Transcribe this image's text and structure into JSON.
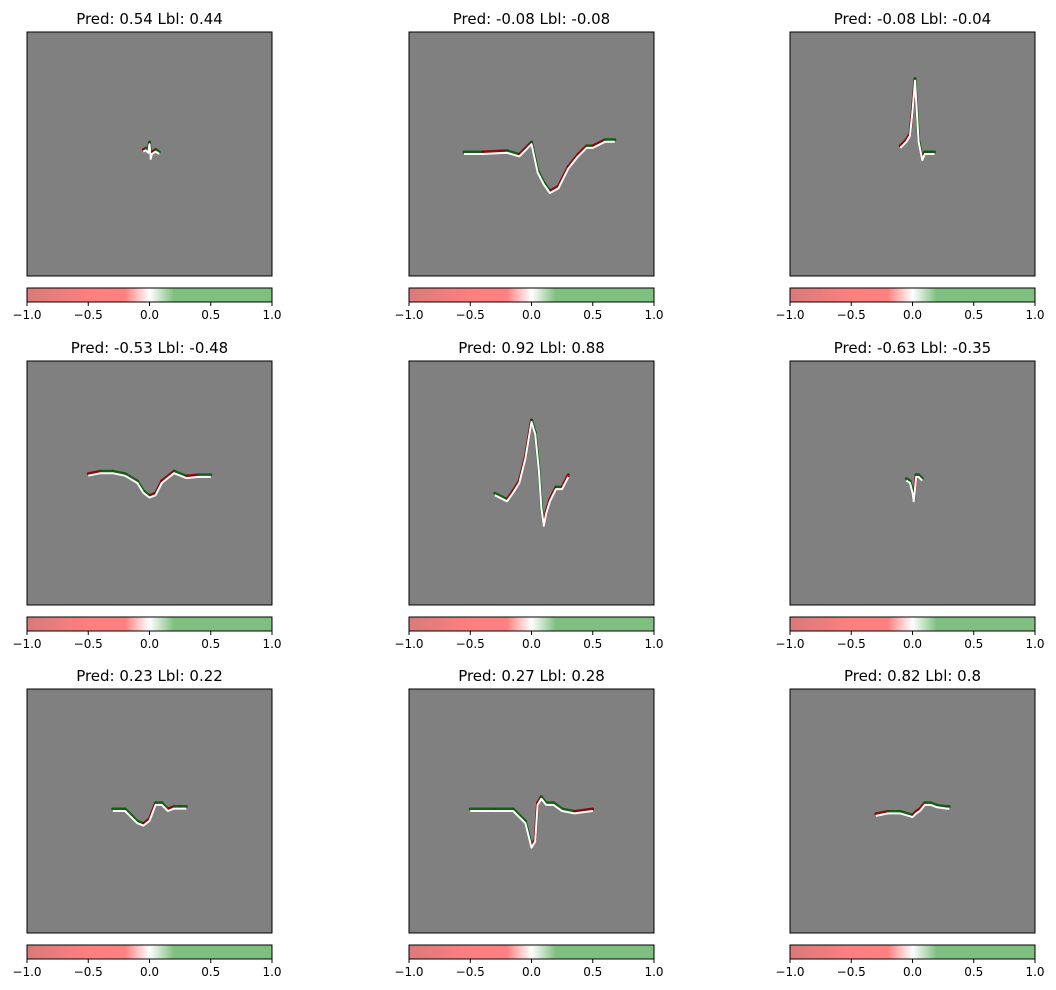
{
  "chart_data": [
    {
      "type": "line",
      "title": "Pred: 0.54 Lbl: 0.44",
      "colorbar": {
        "ticks": [
          "−1.0",
          "−0.5",
          "0.0",
          "0.5",
          "1.0"
        ],
        "range": [
          -1,
          1
        ]
      },
      "signal": [
        [
          -0.05,
          0.02
        ],
        [
          -0.03,
          0.03
        ],
        [
          -0.01,
          0.01
        ],
        [
          0.0,
          0.08
        ],
        [
          0.01,
          -0.04
        ],
        [
          0.02,
          0.0
        ],
        [
          0.05,
          0.02
        ],
        [
          0.08,
          0.0
        ]
      ]
    },
    {
      "type": "line",
      "title": "Pred: -0.08 Lbl: -0.08",
      "colorbar": {
        "ticks": [
          "−1.0",
          "−0.5",
          "0.0",
          "0.5",
          "1.0"
        ],
        "range": [
          -1,
          1
        ]
      },
      "signal": [
        [
          -0.55,
          0.0
        ],
        [
          -0.4,
          0.0
        ],
        [
          -0.2,
          0.01
        ],
        [
          -0.1,
          -0.02
        ],
        [
          0.0,
          0.08
        ],
        [
          0.05,
          -0.15
        ],
        [
          0.1,
          -0.25
        ],
        [
          0.15,
          -0.32
        ],
        [
          0.22,
          -0.28
        ],
        [
          0.3,
          -0.12
        ],
        [
          0.38,
          -0.02
        ],
        [
          0.45,
          0.05
        ],
        [
          0.5,
          0.05
        ],
        [
          0.6,
          0.1
        ],
        [
          0.68,
          0.1
        ]
      ]
    },
    {
      "type": "line",
      "title": "Pred: -0.08 Lbl: -0.04",
      "colorbar": {
        "ticks": [
          "−1.0",
          "−0.5",
          "0.0",
          "0.5",
          "1.0"
        ],
        "range": [
          -1,
          1
        ]
      },
      "signal": [
        [
          -0.1,
          0.05
        ],
        [
          -0.05,
          0.1
        ],
        [
          -0.02,
          0.15
        ],
        [
          0.0,
          0.35
        ],
        [
          0.02,
          0.6
        ],
        [
          0.05,
          0.1
        ],
        [
          0.08,
          -0.05
        ],
        [
          0.1,
          0.0
        ],
        [
          0.15,
          0.0
        ],
        [
          0.18,
          0.0
        ]
      ]
    },
    {
      "type": "line",
      "title": "Pred: -0.53 Lbl: -0.48",
      "colorbar": {
        "ticks": [
          "−1.0",
          "−0.5",
          "0.0",
          "0.5",
          "1.0"
        ],
        "range": [
          -1,
          1
        ]
      },
      "signal": [
        [
          -0.5,
          0.06
        ],
        [
          -0.4,
          0.08
        ],
        [
          -0.3,
          0.08
        ],
        [
          -0.2,
          0.06
        ],
        [
          -0.1,
          0.0
        ],
        [
          -0.05,
          -0.08
        ],
        [
          0.0,
          -0.12
        ],
        [
          0.05,
          -0.1
        ],
        [
          0.1,
          0.0
        ],
        [
          0.2,
          0.08
        ],
        [
          0.3,
          0.04
        ],
        [
          0.4,
          0.05
        ],
        [
          0.5,
          0.05
        ]
      ]
    },
    {
      "type": "line",
      "title": "Pred: 0.92 Lbl: 0.88",
      "colorbar": {
        "ticks": [
          "−1.0",
          "−0.5",
          "0.0",
          "0.5",
          "1.0"
        ],
        "range": [
          -1,
          1
        ]
      },
      "signal": [
        [
          -0.3,
          -0.1
        ],
        [
          -0.2,
          -0.15
        ],
        [
          -0.15,
          -0.08
        ],
        [
          -0.1,
          0.0
        ],
        [
          -0.05,
          0.2
        ],
        [
          0.0,
          0.5
        ],
        [
          0.03,
          0.4
        ],
        [
          0.06,
          0.1
        ],
        [
          0.08,
          -0.2
        ],
        [
          0.1,
          -0.35
        ],
        [
          0.12,
          -0.25
        ],
        [
          0.15,
          -0.15
        ],
        [
          0.2,
          -0.05
        ],
        [
          0.25,
          -0.05
        ],
        [
          0.3,
          0.05
        ]
      ]
    },
    {
      "type": "line",
      "title": "Pred: -0.63 Lbl: -0.35",
      "colorbar": {
        "ticks": [
          "−1.0",
          "−0.5",
          "0.0",
          "0.5",
          "1.0"
        ],
        "range": [
          -1,
          1
        ]
      },
      "signal": [
        [
          -0.05,
          0.02
        ],
        [
          -0.02,
          0.0
        ],
        [
          0.0,
          -0.08
        ],
        [
          0.01,
          -0.15
        ],
        [
          0.02,
          -0.05
        ],
        [
          0.03,
          0.05
        ],
        [
          0.05,
          0.05
        ],
        [
          0.08,
          0.02
        ]
      ]
    },
    {
      "type": "line",
      "title": "Pred: 0.23 Lbl: 0.22",
      "colorbar": {
        "ticks": [
          "−1.0",
          "−0.5",
          "0.0",
          "0.5",
          "1.0"
        ],
        "range": [
          -1,
          1
        ]
      },
      "signal": [
        [
          -0.3,
          0.0
        ],
        [
          -0.2,
          0.0
        ],
        [
          -0.15,
          -0.05
        ],
        [
          -0.1,
          -0.1
        ],
        [
          -0.05,
          -0.12
        ],
        [
          0.0,
          -0.08
        ],
        [
          0.05,
          0.05
        ],
        [
          0.1,
          0.05
        ],
        [
          0.15,
          0.0
        ],
        [
          0.2,
          0.02
        ],
        [
          0.25,
          0.02
        ],
        [
          0.3,
          0.02
        ]
      ]
    },
    {
      "type": "line",
      "title": "Pred: 0.27 Lbl: 0.28",
      "colorbar": {
        "ticks": [
          "−1.0",
          "−0.5",
          "0.0",
          "0.5",
          "1.0"
        ],
        "range": [
          -1,
          1
        ]
      },
      "signal": [
        [
          -0.5,
          0.0
        ],
        [
          -0.3,
          0.0
        ],
        [
          -0.15,
          0.0
        ],
        [
          -0.05,
          -0.1
        ],
        [
          0.0,
          -0.3
        ],
        [
          0.03,
          -0.25
        ],
        [
          0.05,
          0.05
        ],
        [
          0.08,
          0.1
        ],
        [
          0.12,
          0.05
        ],
        [
          0.18,
          0.05
        ],
        [
          0.25,
          0.0
        ],
        [
          0.35,
          -0.02
        ],
        [
          0.5,
          0.0
        ]
      ]
    },
    {
      "type": "line",
      "title": "Pred: 0.82 Lbl: 0.8",
      "colorbar": {
        "ticks": [
          "−1.0",
          "−0.5",
          "0.0",
          "0.5",
          "1.0"
        ],
        "range": [
          -1,
          1
        ]
      },
      "signal": [
        [
          -0.3,
          -0.04
        ],
        [
          -0.2,
          -0.02
        ],
        [
          -0.1,
          -0.02
        ],
        [
          0.0,
          -0.05
        ],
        [
          0.03,
          -0.02
        ],
        [
          0.06,
          0.0
        ],
        [
          0.1,
          0.05
        ],
        [
          0.15,
          0.05
        ],
        [
          0.2,
          0.03
        ],
        [
          0.28,
          0.02
        ],
        [
          0.3,
          0.02
        ]
      ]
    }
  ],
  "colors": {
    "background": "#808080",
    "signal": "#ffffff",
    "negative": "#8b0000",
    "positive": "#0b5a0b"
  }
}
